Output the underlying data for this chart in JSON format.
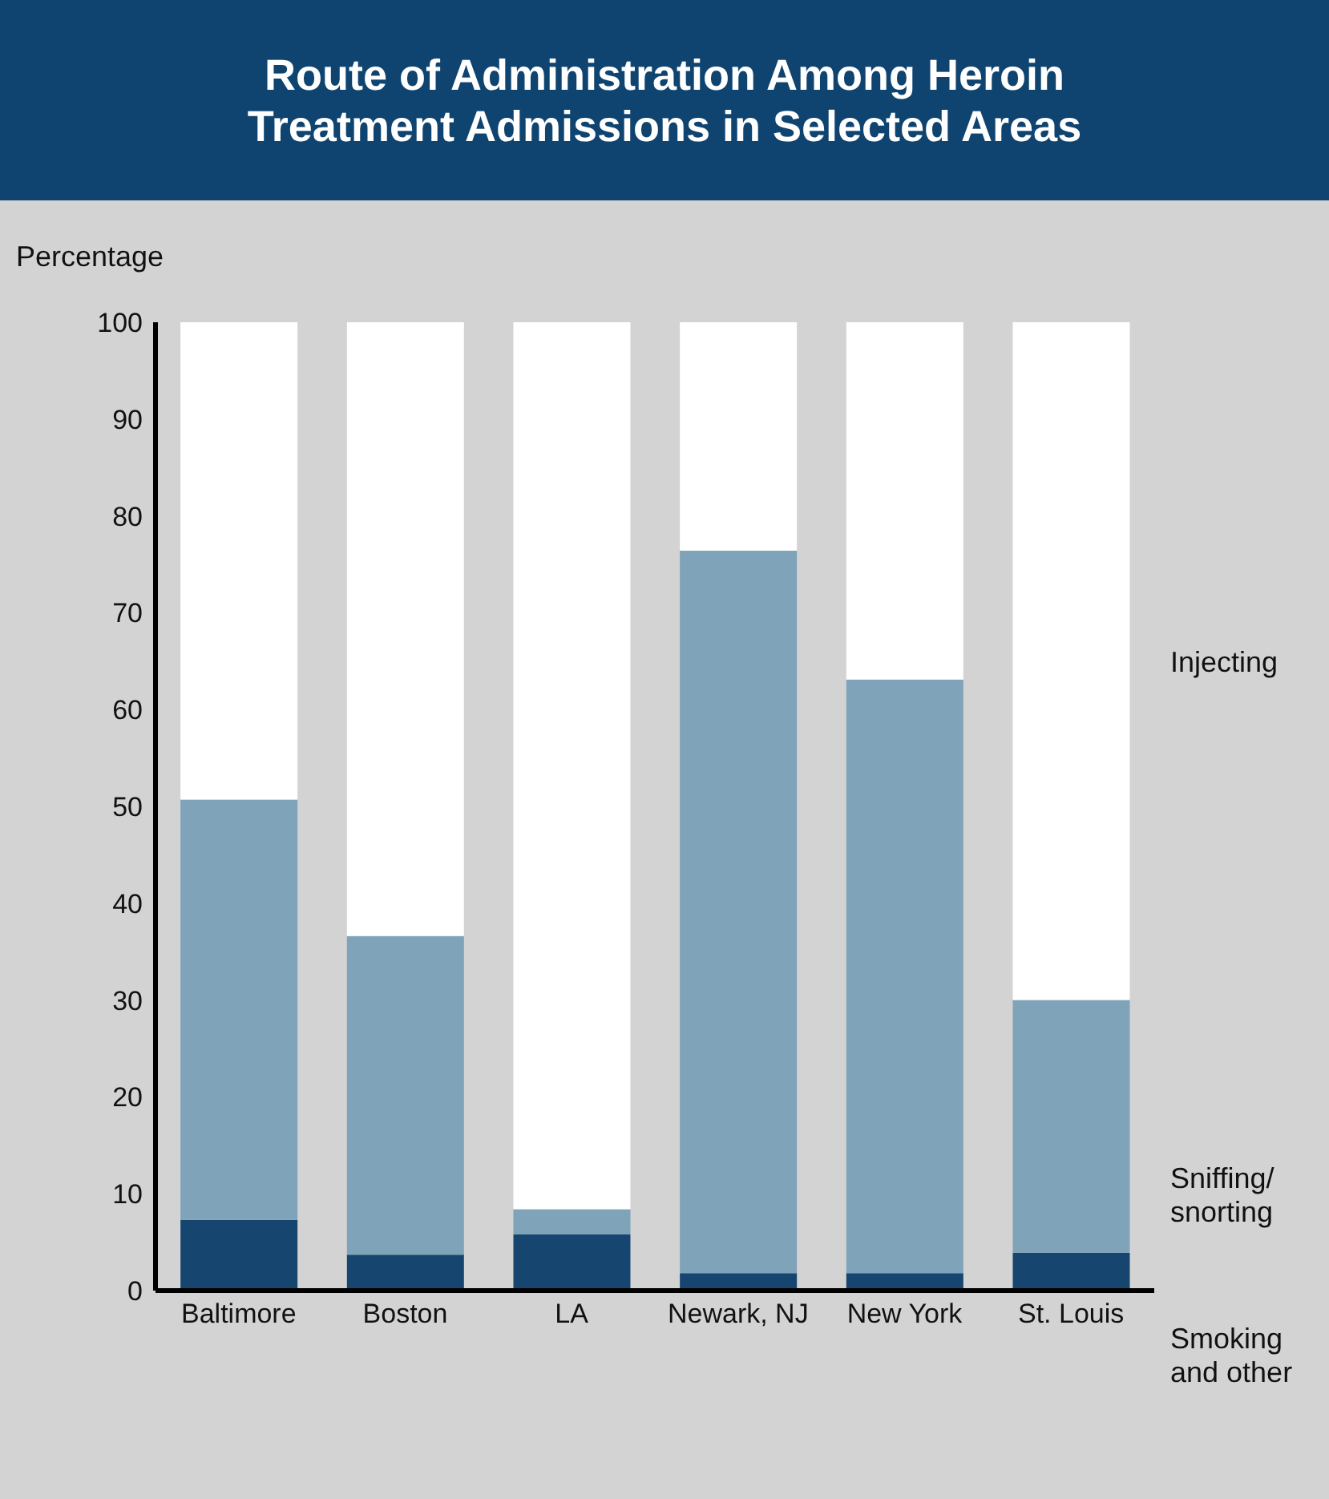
{
  "chart_data": {
    "type": "bar",
    "title": "Route of Administration Among Heroin Treatment Admissions in Selected Areas",
    "ylabel": "Percentage",
    "categories": [
      "Baltimore",
      "Boston",
      "LA",
      "Newark, NJ",
      "New York",
      "St. Louis"
    ],
    "stacked": true,
    "series": [
      {
        "name": "Smoking and other",
        "color": "#164670",
        "values": [
          7.3,
          3.7,
          5.8,
          1.8,
          1.8,
          3.9
        ]
      },
      {
        "name": "Sniffing/ snorting",
        "color": "#7fa3b8",
        "values": [
          43.4,
          32.9,
          2.6,
          74.6,
          61.3,
          26.1
        ]
      },
      {
        "name": "Injecting",
        "color": "#ffffff",
        "values": [
          49.3,
          63.4,
          91.6,
          23.6,
          36.9,
          70.0
        ]
      }
    ],
    "ylim": [
      0,
      100
    ],
    "yticks": [
      0,
      10,
      20,
      30,
      40,
      50,
      60,
      70,
      80,
      90,
      100
    ],
    "legend": false
  }
}
